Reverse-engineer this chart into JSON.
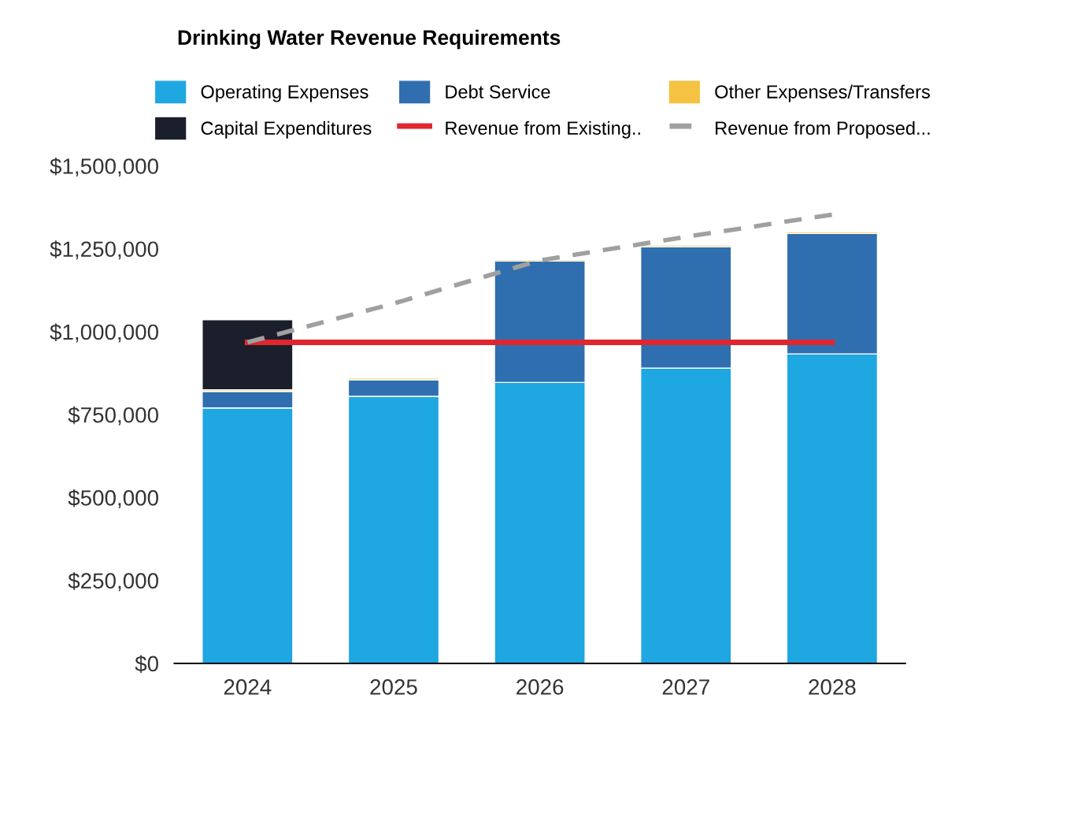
{
  "chart_data": {
    "type": "bar",
    "title": "Drinking Water Revenue Requirements",
    "stacked": true,
    "categories": [
      "2024",
      "2025",
      "2026",
      "2027",
      "2028"
    ],
    "series": [
      {
        "name": "Operating Expenses",
        "color": "#1ea7e1",
        "values": [
          770000,
          805000,
          847000,
          890000,
          933000
        ]
      },
      {
        "name": "Debt Service",
        "color": "#2f6fb0",
        "values": [
          50000,
          50000,
          366000,
          366000,
          363000
        ]
      },
      {
        "name": "Other Expenses/Transfers",
        "color": "#f5c242",
        "values": [
          5000,
          5000,
          5000,
          5000,
          5000
        ]
      },
      {
        "name": "Capital Expenditures",
        "color": "#1b1f2b",
        "values": [
          211000,
          0,
          0,
          0,
          0
        ]
      },
      {
        "name": "Revenue from Existing..",
        "color": "#e0262e",
        "type": "line",
        "line_style": "solid",
        "values": [
          968000,
          968000,
          968000,
          968000,
          968000
        ]
      },
      {
        "name": "Revenue from Proposed...",
        "color": "#a0a0a0",
        "type": "line",
        "line_style": "dashed",
        "values": [
          968000,
          1085000,
          1215000,
          1286000,
          1353000
        ]
      }
    ],
    "ylim": [
      0,
      1500000
    ],
    "yticks": [
      {
        "value": 0,
        "label": "$0"
      },
      {
        "value": 250000,
        "label": "$250,000"
      },
      {
        "value": 500000,
        "label": "$500,000"
      },
      {
        "value": 750000,
        "label": "$750,000"
      },
      {
        "value": 1000000,
        "label": "$1,000,000"
      },
      {
        "value": 1250000,
        "label": "$1,250,000"
      },
      {
        "value": 1500000,
        "label": "$1,500,000"
      }
    ],
    "legend": "top"
  }
}
